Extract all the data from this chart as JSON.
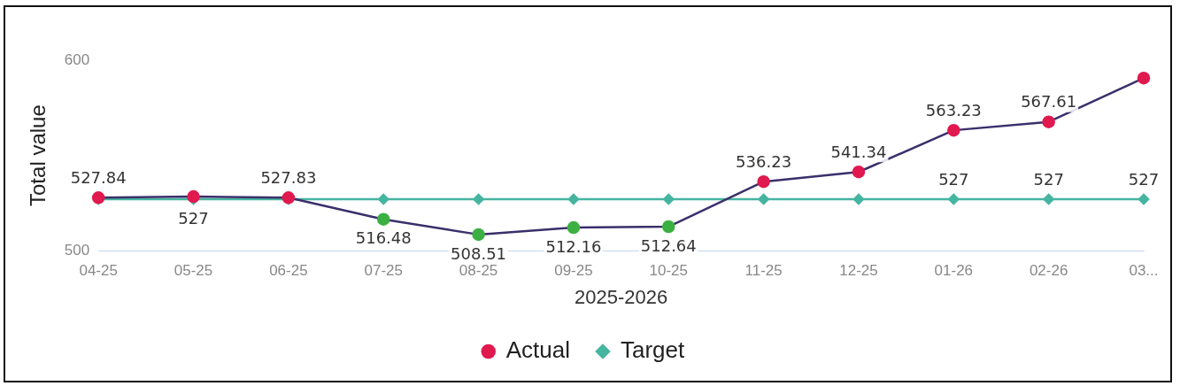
{
  "chart_data": {
    "type": "line",
    "xlabel": "2025-2026",
    "ylabel": "Total value",
    "categories": [
      "04-25",
      "05-25",
      "06-25",
      "07-25",
      "08-25",
      "09-25",
      "10-25",
      "11-25",
      "12-25",
      "01-26",
      "02-26",
      "03..."
    ],
    "series": [
      {
        "name": "Actual",
        "color": "#3b2f6b",
        "marker": "circle",
        "colors": [
          "#e0194f",
          "#e0194f",
          "#e0194f",
          "#3cb043",
          "#3cb043",
          "#3cb043",
          "#3cb043",
          "#e0194f",
          "#e0194f",
          "#e0194f",
          "#e0194f",
          "#e0194f"
        ],
        "values": [
          527.84,
          528.4,
          527.83,
          516.48,
          508.51,
          512.16,
          512.64,
          536.23,
          541.34,
          563.23,
          567.61,
          590.6
        ],
        "value_labels": [
          "527.84",
          null,
          "527.83",
          "516.48",
          "508.51",
          "512.16",
          "512.64",
          "536.23",
          "541.34",
          "563.23",
          "567.61",
          null
        ]
      },
      {
        "name": "Target",
        "color": "#45b5a0",
        "marker": "diamond",
        "values": [
          527,
          527,
          527,
          527,
          527,
          527,
          527,
          527,
          527,
          527,
          527,
          527
        ],
        "value_labels": [
          null,
          "527",
          null,
          null,
          null,
          null,
          null,
          null,
          null,
          "527",
          "527",
          "527"
        ]
      }
    ],
    "ylim": [
      500,
      600
    ],
    "yticks": [
      500,
      600
    ],
    "grid": false,
    "legend": "bottom"
  }
}
